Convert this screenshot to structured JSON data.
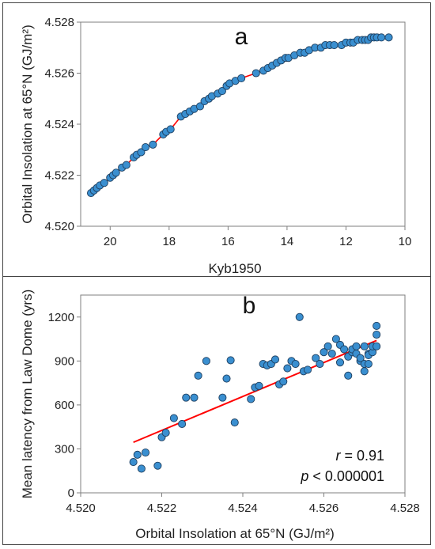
{
  "chart_data": [
    {
      "type": "scatter",
      "panel_label": "a",
      "xlabel": "Kyb1950",
      "ylabel": "Orbital Insolation at  65°N (GJ/m²)",
      "xlim": [
        21,
        10
      ],
      "ylim": [
        4.52,
        4.528
      ],
      "x_reversed": true,
      "x_ticks": [
        20,
        18,
        16,
        14,
        12,
        10
      ],
      "x_tick_labels": [
        "20",
        "18",
        "16",
        "14",
        "12",
        "10"
      ],
      "y_ticks": [
        4.52,
        4.522,
        4.524,
        4.526,
        4.528
      ],
      "y_tick_labels": [
        "4.520",
        "4.522",
        "4.524",
        "4.526",
        "4.528"
      ],
      "fit_line_color": "#ff0000",
      "marker_color": "#3a8fd0",
      "x": [
        20.65,
        20.55,
        20.45,
        20.35,
        20.2,
        20.0,
        19.9,
        19.8,
        19.6,
        19.45,
        19.2,
        19.1,
        18.95,
        18.8,
        18.55,
        18.2,
        18.1,
        17.95,
        17.6,
        17.45,
        17.3,
        17.15,
        16.95,
        16.8,
        16.65,
        16.55,
        16.35,
        16.2,
        16.05,
        15.95,
        15.75,
        15.55,
        15.05,
        14.8,
        14.65,
        14.5,
        14.35,
        14.2,
        14.05,
        13.95,
        13.75,
        13.55,
        13.4,
        13.25,
        13.05,
        12.85,
        12.7,
        12.55,
        12.4,
        12.15,
        12.0,
        11.85,
        11.75,
        11.6,
        11.45,
        11.35,
        11.25,
        11.15,
        11.05,
        10.95,
        10.8,
        10.55
      ],
      "y": [
        4.5213,
        4.5214,
        4.5215,
        4.5216,
        4.5217,
        4.5219,
        4.522,
        4.5221,
        4.5223,
        4.5224,
        4.5227,
        4.5228,
        4.5229,
        4.5231,
        4.5232,
        4.5236,
        4.5237,
        4.5238,
        4.5243,
        4.5244,
        4.5245,
        4.5246,
        4.5247,
        4.5249,
        4.525,
        4.5251,
        4.5252,
        4.5253,
        4.5255,
        4.5256,
        4.5257,
        4.5258,
        4.526,
        4.5261,
        4.5262,
        4.5263,
        4.5264,
        4.5265,
        4.5266,
        4.5266,
        4.5267,
        4.5268,
        4.5268,
        4.5269,
        4.527,
        4.527,
        4.5271,
        4.5271,
        4.5271,
        4.5271,
        4.5272,
        4.5272,
        4.5272,
        4.5273,
        4.5273,
        4.5273,
        4.5273,
        4.5274,
        4.5274,
        4.5274,
        4.5274,
        4.5274
      ]
    },
    {
      "type": "scatter",
      "panel_label": "b",
      "xlabel": "Orbital Insolation at  65°N (GJ/m²)",
      "ylabel": "Mean latency from Law Dome (yrs)",
      "xlim": [
        4.52,
        4.528
      ],
      "ylim": [
        0,
        1350
      ],
      "x_ticks": [
        4.52,
        4.522,
        4.524,
        4.526,
        4.528
      ],
      "x_tick_labels": [
        "4.520",
        "4.522",
        "4.524",
        "4.526",
        "4.528"
      ],
      "y_ticks": [
        0,
        300,
        600,
        900,
        1200
      ],
      "y_tick_labels": [
        "0",
        "300",
        "600",
        "900",
        "1200"
      ],
      "annotations": [
        {
          "var": "r",
          "text": " = 0.91"
        },
        {
          "var": "p",
          "text": " < 0.000001"
        }
      ],
      "fit_line": {
        "x": [
          4.5213,
          4.5273
        ],
        "y": [
          345,
          1040
        ]
      },
      "fit_line_color": "#ff0000",
      "marker_color": "#3a8fd0",
      "x": [
        4.5213,
        4.5214,
        4.5215,
        4.5216,
        4.5219,
        4.522,
        4.5221,
        4.5223,
        4.5225,
        4.5226,
        4.5228,
        4.5229,
        4.5231,
        4.5235,
        4.5236,
        4.5237,
        4.5238,
        4.5242,
        4.5243,
        4.5244,
        4.5245,
        4.5246,
        4.5247,
        4.5248,
        4.5249,
        4.525,
        4.5251,
        4.5252,
        4.5253,
        4.5254,
        4.5255,
        4.5256,
        4.5258,
        4.5259,
        4.526,
        4.5261,
        4.5262,
        4.5263,
        4.5264,
        4.5264,
        4.5265,
        4.5266,
        4.5266,
        4.5267,
        4.5267,
        4.5268,
        4.5268,
        4.5269,
        4.5269,
        4.527,
        4.527,
        4.527,
        4.5271,
        4.5271,
        4.5271,
        4.5272,
        4.5272,
        4.5273,
        4.5273,
        4.5273
      ],
      "y": [
        210,
        260,
        165,
        275,
        185,
        380,
        410,
        510,
        470,
        650,
        650,
        800,
        900,
        650,
        780,
        905,
        480,
        640,
        720,
        730,
        880,
        870,
        880,
        910,
        740,
        760,
        850,
        900,
        880,
        1200,
        830,
        840,
        920,
        880,
        960,
        1000,
        950,
        1050,
        890,
        1010,
        980,
        800,
        930,
        960,
        980,
        950,
        1000,
        900,
        920,
        880,
        1000,
        830,
        950,
        880,
        940,
        960,
        1000,
        1080,
        1140,
        1000
      ]
    }
  ]
}
